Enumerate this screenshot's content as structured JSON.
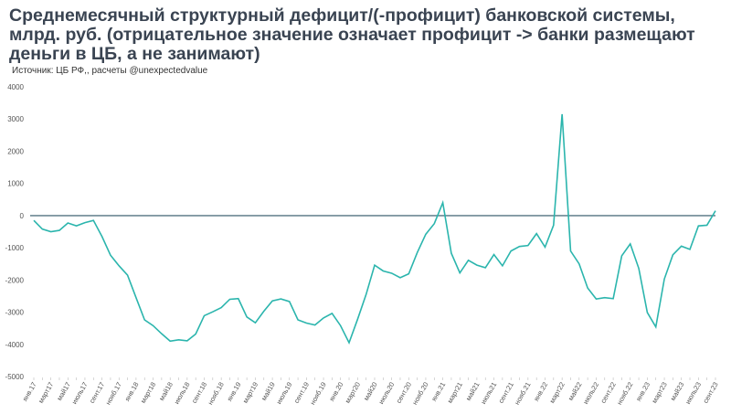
{
  "title": "Среднемесячный структурный дефицит/(-профицит) банковской системы, млрд. руб. (отрицательное значение означает профицит -> банки размещают деньги в ЦБ, а не занимают)",
  "source": "Источник: ЦБ РФ,, расчеты @unexpectedvalue",
  "colors": {
    "line": "#2bb5ad",
    "zero_line": "#6e8894",
    "title": "#3a4452"
  },
  "chart_data": {
    "type": "line",
    "title": "Среднемесячный структурный дефицит/(-профицит) банковской системы, млрд. руб. (отрицательное значение означает профицит -> банки размещают деньги в ЦБ, а не занимают)",
    "xlabel": "",
    "ylabel": "",
    "ylim": [
      -5000,
      4000
    ],
    "yticks": [
      4000,
      3000,
      2000,
      1000,
      0,
      -1000,
      -2000,
      -3000,
      -4000,
      -5000
    ],
    "grid": false,
    "x_tick_labels": [
      "янв.17",
      "март17",
      "май17",
      "июль17",
      "сент.17",
      "нояб.17",
      "янв.18",
      "март18",
      "май18",
      "июль18",
      "сент.18",
      "нояб.18",
      "янв.19",
      "март19",
      "май19",
      "июль19",
      "сент.19",
      "нояб.19",
      "янв.20",
      "март20",
      "май20",
      "июль20",
      "сент.20",
      "нояб.20",
      "янв.21",
      "март21",
      "май21",
      "июль21",
      "сент.21",
      "нояб.21",
      "янв.22",
      "март22",
      "май22",
      "июль22",
      "сент.22",
      "нояб.22",
      "янв.23",
      "март23",
      "май23",
      "июль23",
      "сент.23"
    ],
    "series": [
      {
        "values": [
          -150,
          -420,
          -500,
          -460,
          -230,
          -320,
          -220,
          -150,
          -650,
          -1230,
          -1560,
          -1850,
          -2550,
          -3240,
          -3420,
          -3670,
          -3900,
          -3860,
          -3890,
          -3680,
          -3110,
          -2990,
          -2860,
          -2600,
          -2580,
          -3150,
          -3330,
          -2970,
          -2650,
          -2590,
          -2670,
          -3240,
          -3340,
          -3400,
          -3180,
          -3040,
          -3420,
          -3950,
          -3220,
          -2450,
          -1540,
          -1720,
          -1790,
          -1930,
          -1810,
          -1150,
          -580,
          -250,
          400,
          -1170,
          -1780,
          -1390,
          -1540,
          -1620,
          -1210,
          -1560,
          -1100,
          -960,
          -930,
          -560,
          -980,
          -300,
          3150,
          -1100,
          -1500,
          -2250,
          -2590,
          -2550,
          -2580,
          -1250,
          -880,
          -1640,
          -3010,
          -3460,
          -1970,
          -1220,
          -950,
          -1050,
          -320,
          -300,
          150
        ]
      }
    ]
  }
}
